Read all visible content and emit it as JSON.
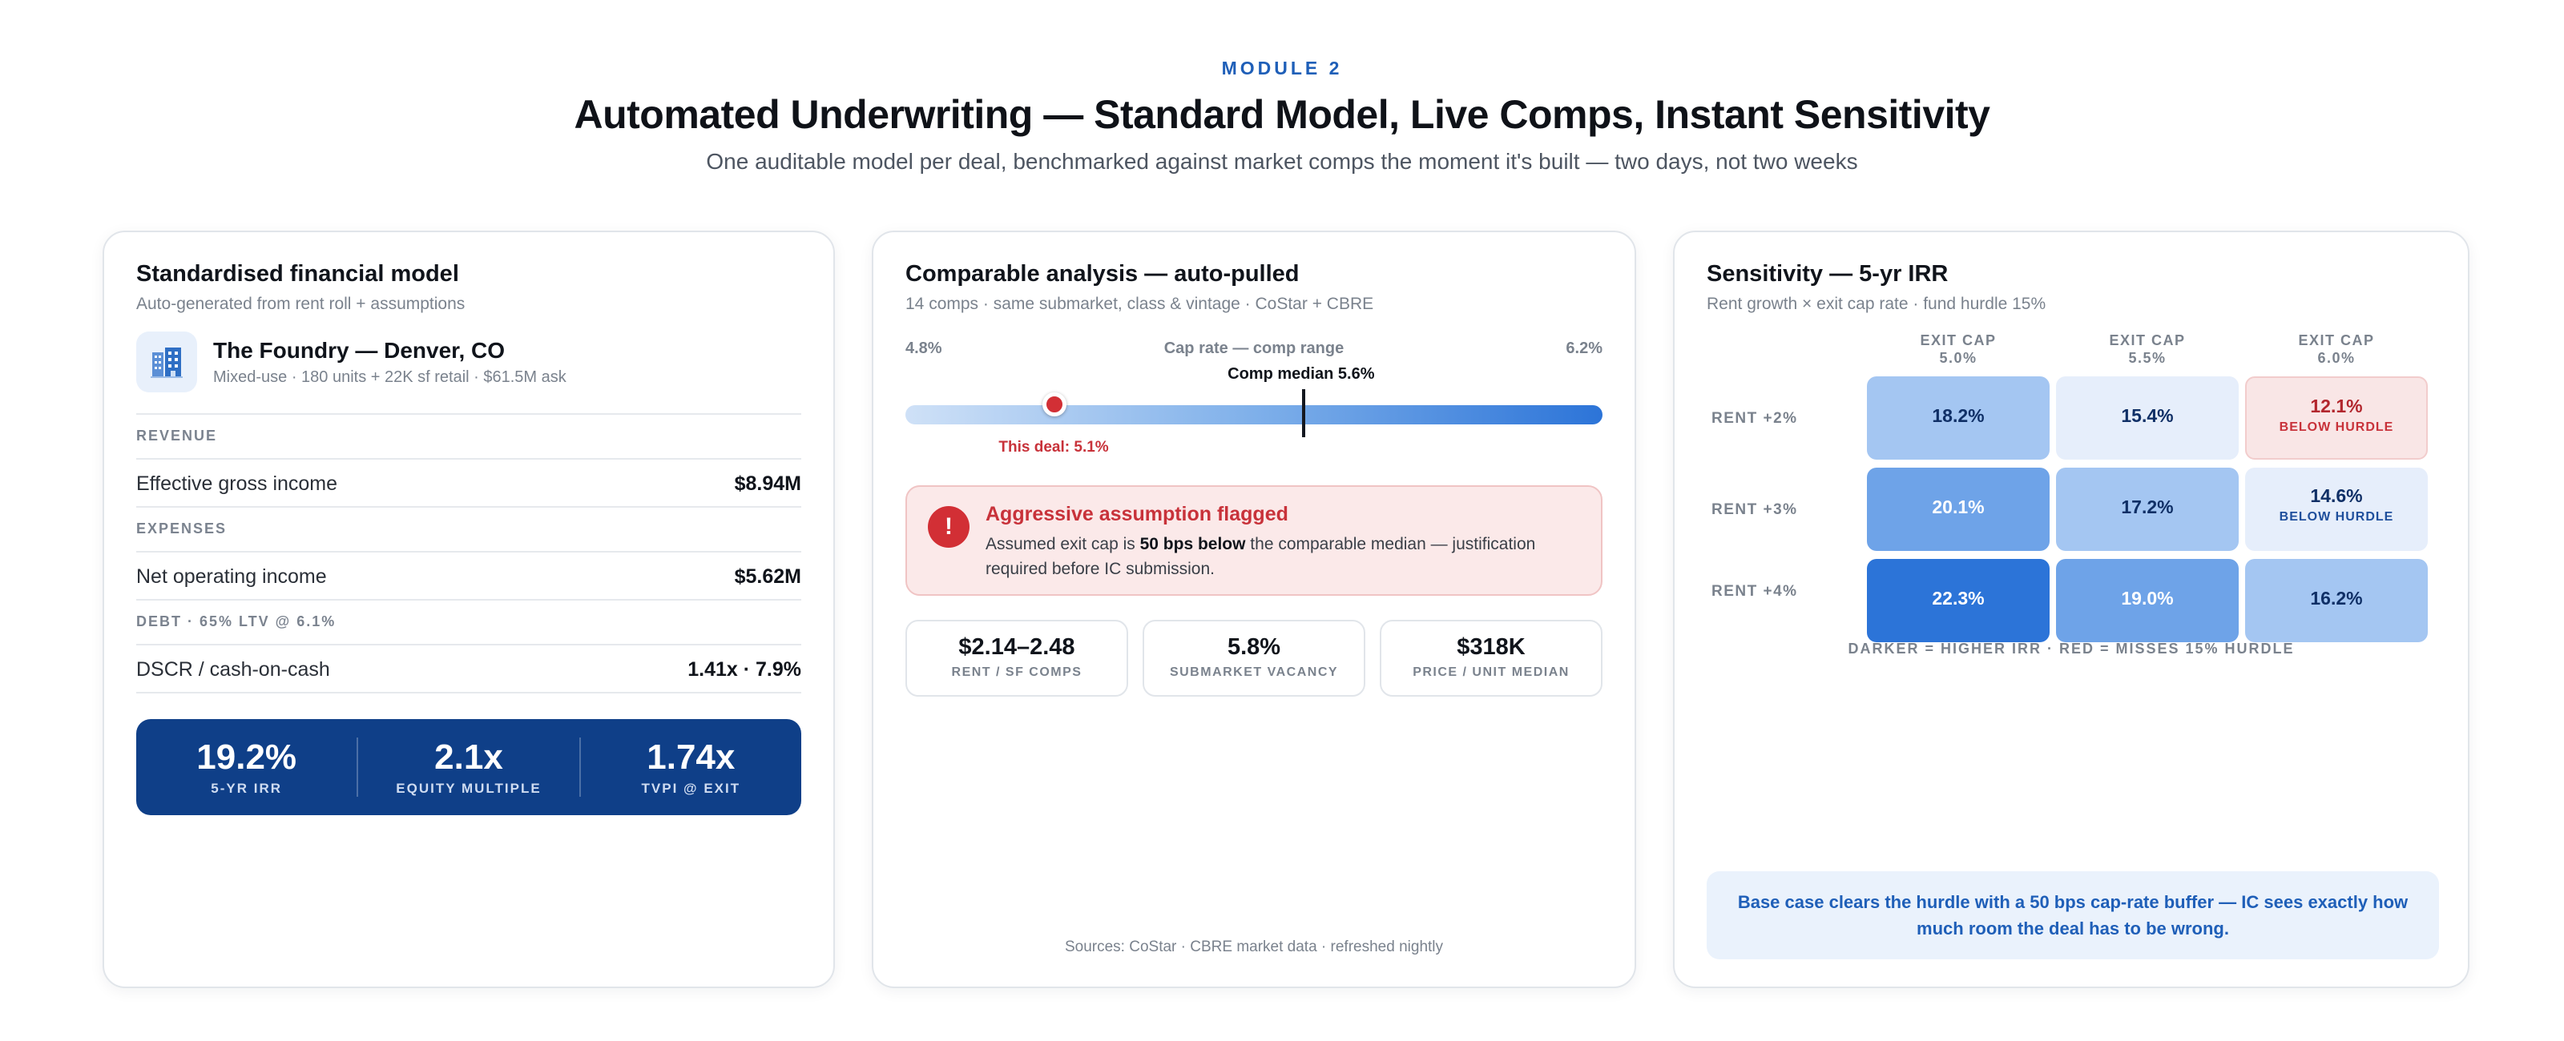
{
  "header": {
    "eyebrow": "MODULE 2",
    "title": "Automated Underwriting — Standard Model, Live Comps, Instant Sensitivity",
    "subtitle": "One auditable model per deal, benchmarked against market comps the moment it's built — two days, not two weeks"
  },
  "model": {
    "title": "Standardised financial model",
    "subtitle": "Auto-generated from rent roll + assumptions",
    "property": {
      "icon": "building-icon",
      "name": "The Foundry — Denver, CO",
      "meta": "Mixed-use · 180 units + 22K sf retail · $61.5M ask"
    },
    "revenue_label": "REVENUE",
    "egi_label": "Effective gross income",
    "egi_value": "$8.94M",
    "expenses_label": "EXPENSES",
    "noi_label": "Net operating income",
    "noi_value": "$5.62M",
    "debt_label": "DEBT · 65% LTV @ 6.1%",
    "dscr_label": "DSCR / cash-on-cash",
    "dscr_value": "1.41x · 7.9%",
    "metrics": [
      {
        "value": "19.2%",
        "label": "5-YR IRR"
      },
      {
        "value": "2.1x",
        "label": "EQUITY MULTIPLE"
      },
      {
        "value": "1.74x",
        "label": "TVPI @ EXIT"
      }
    ]
  },
  "comps": {
    "title": "Comparable analysis — auto-pulled",
    "subtitle": "14 comps · same submarket, class & vintage · CoStar + CBRE",
    "range": {
      "min_label": "4.8%",
      "max_label": "6.2%",
      "title": "Cap rate — comp range",
      "min": 4.8,
      "max": 6.2,
      "median": 5.6,
      "deal": 5.1,
      "median_label": "Comp median 5.6%",
      "deal_label": "This deal: 5.1%"
    },
    "alert": {
      "title": "Aggressive assumption flagged",
      "body_prefix": "Assumed exit cap is ",
      "body_bold": "50 bps below",
      "body_suffix": " the comparable median — justification required before IC submission."
    },
    "stats": [
      {
        "value": "$2.14–2.48",
        "label": "RENT / SF COMPS"
      },
      {
        "value": "5.8%",
        "label": "SUBMARKET VACANCY"
      },
      {
        "value": "$318K",
        "label": "PRICE / UNIT MEDIAN"
      }
    ],
    "sources": "Sources: CoStar · CBRE market data · refreshed nightly"
  },
  "sensitivity": {
    "title": "Sensitivity — 5-yr IRR",
    "subtitle": "Rent growth × exit cap rate · fund hurdle 15%",
    "columns": [
      {
        "line1": "EXIT CAP",
        "line2": "5.0%"
      },
      {
        "line1": "EXIT CAP",
        "line2": "5.5%"
      },
      {
        "line1": "EXIT CAP",
        "line2": "6.0%"
      }
    ],
    "rows": [
      {
        "label": "RENT +2%",
        "cells": [
          {
            "value": "18.2%",
            "note": "",
            "tone": "mid"
          },
          {
            "value": "15.4%",
            "note": "",
            "tone": "pale"
          },
          {
            "value": "12.1%",
            "note": "BELOW HURDLE",
            "tone": "red"
          }
        ]
      },
      {
        "label": "RENT +3%",
        "cells": [
          {
            "value": "20.1%",
            "note": "",
            "tone": "strong"
          },
          {
            "value": "17.2%",
            "note": "",
            "tone": "mid"
          },
          {
            "value": "14.6%",
            "note": "BELOW HURDLE",
            "tone": "pale"
          }
        ]
      },
      {
        "label": "RENT +4%",
        "cells": [
          {
            "value": "22.3%",
            "note": "",
            "tone": "darkest"
          },
          {
            "value": "19.0%",
            "note": "",
            "tone": "strong"
          },
          {
            "value": "16.2%",
            "note": "",
            "tone": "mid"
          }
        ]
      }
    ],
    "legend": "DARKER = HIGHER IRR · RED = MISSES 15% HURDLE",
    "note": "Base case clears the hurdle with a 50 bps cap-rate buffer — IC sees exactly how much room the deal has to be wrong."
  },
  "colors": {
    "accent": "#1f5fb8",
    "navy": "#0f3f88",
    "alert_red": "#d22f35"
  }
}
